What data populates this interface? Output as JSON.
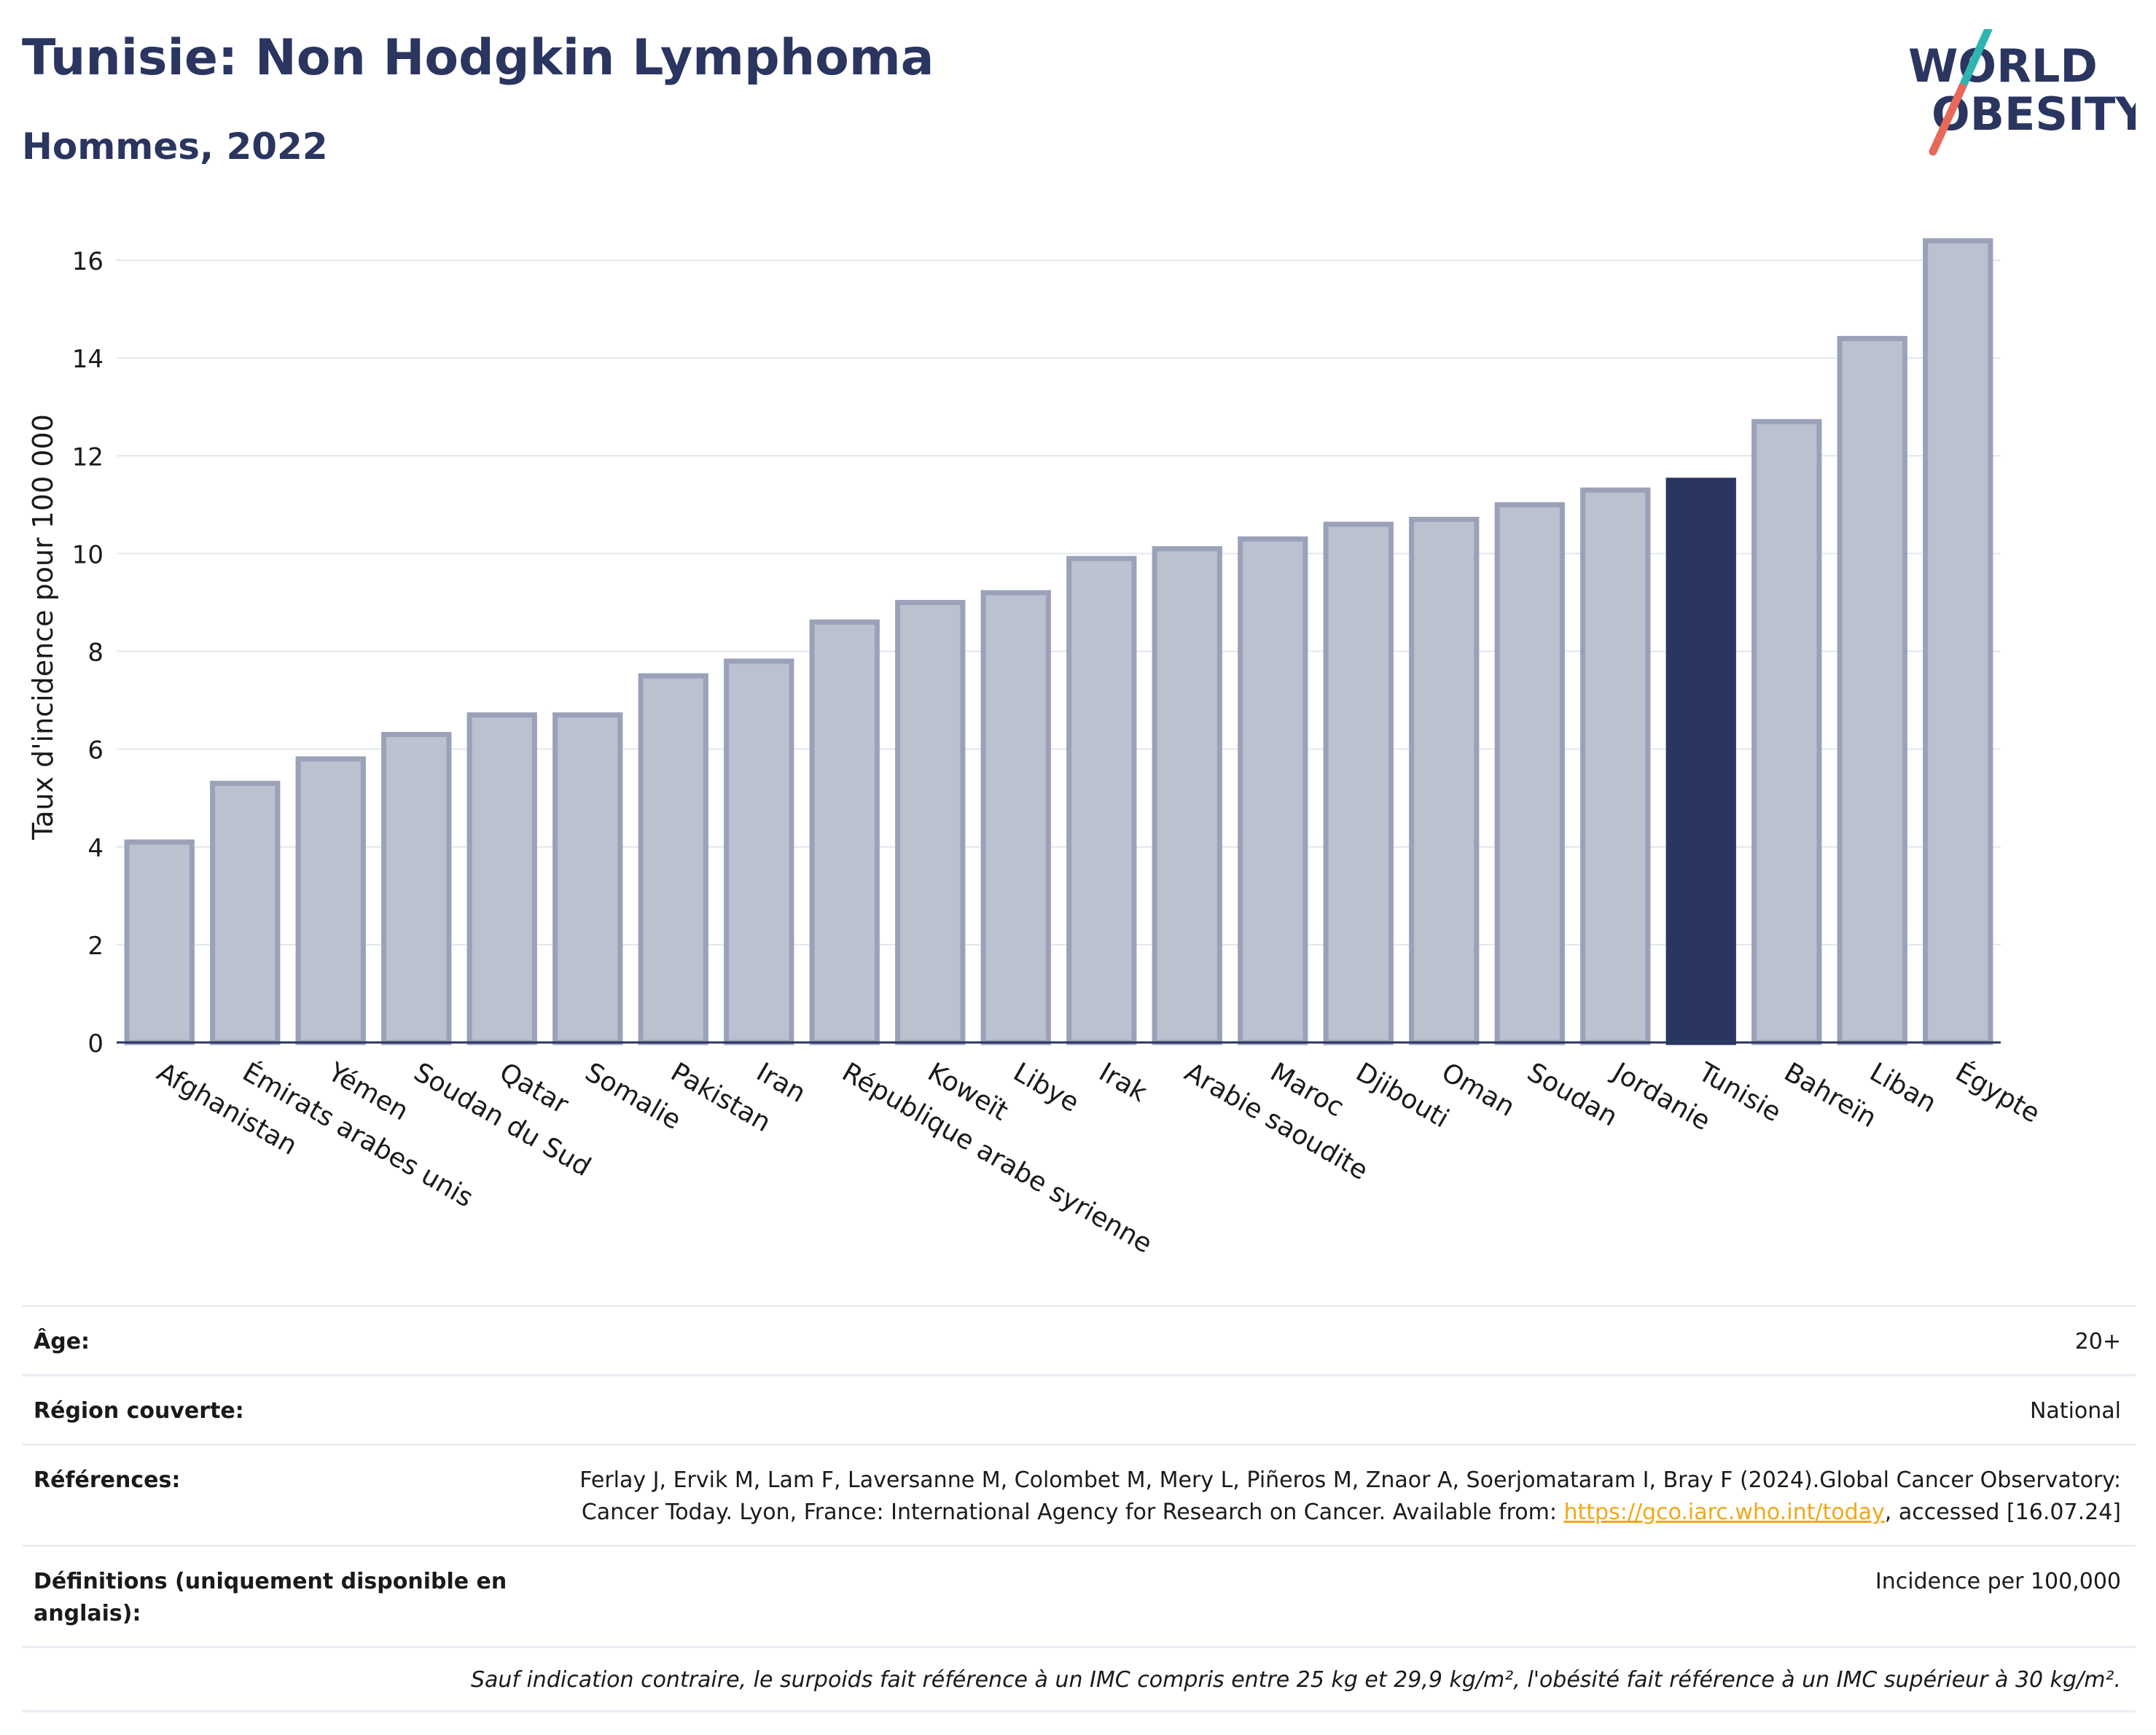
{
  "header": {
    "title": "Tunisie: Non Hodgkin Lymphoma",
    "subtitle": "Hommes, 2022"
  },
  "logo": {
    "line1": "WORLD",
    "line2": "OBESITY",
    "accent_colors": [
      "#2fb5b0",
      "#e8685a"
    ]
  },
  "colors": {
    "bar": "#bcc1d0",
    "bar_border": "#9aa1b9",
    "highlight": "#2a3560",
    "grid": "#e4e6ee",
    "text": "#2a3560"
  },
  "chart_data": {
    "type": "bar",
    "ylabel": "Taux d'incidence pour 100 000",
    "ylim": [
      0,
      17
    ],
    "yticks": [
      0,
      2,
      4,
      6,
      8,
      10,
      12,
      14,
      16
    ],
    "grid": true,
    "highlight": "Tunisie",
    "categories": [
      "Afghanistan",
      "Émirats arabes unis",
      "Yémen",
      "Soudan du Sud",
      "Qatar",
      "Somalie",
      "Pakistan",
      "Iran",
      "République arabe syrienne",
      "Koweït",
      "Libye",
      "Irak",
      "Arabie saoudite",
      "Maroc",
      "Djibouti",
      "Oman",
      "Soudan",
      "Jordanie",
      "Tunisie",
      "Bahreïn",
      "Liban",
      "Égypte"
    ],
    "values": [
      4.1,
      5.3,
      5.8,
      6.3,
      6.7,
      6.7,
      7.5,
      7.8,
      8.6,
      9.0,
      9.2,
      9.9,
      10.1,
      10.3,
      10.6,
      10.7,
      11.0,
      11.3,
      11.5,
      12.7,
      14.4,
      16.4
    ]
  },
  "info": {
    "age_label": "Âge:",
    "age_value": "20+",
    "region_label": "Région couverte:",
    "region_value": "National",
    "references_label": "Références:",
    "references_text": "Ferlay J, Ervik M, Lam F, Laversanne M, Colombet M, Mery L, Piñeros M, Znaor A, Soerjomataram I, Bray F (2024).Global Cancer Observatory: Cancer Today. Lyon, France: International Agency for Research on Cancer. Available from:",
    "references_link": "https://gco.iarc.who.int/today",
    "references_suffix": ", accessed [16.07.24]",
    "definitions_label": "Définitions (uniquement disponible en anglais):",
    "definitions_value": "Incidence per 100,000",
    "note": "Sauf indication contraire, le surpoids fait référence à un IMC compris entre 25 kg et 29,9 kg/m², l'obésité fait référence à un IMC supérieur à 30 kg/m²."
  }
}
